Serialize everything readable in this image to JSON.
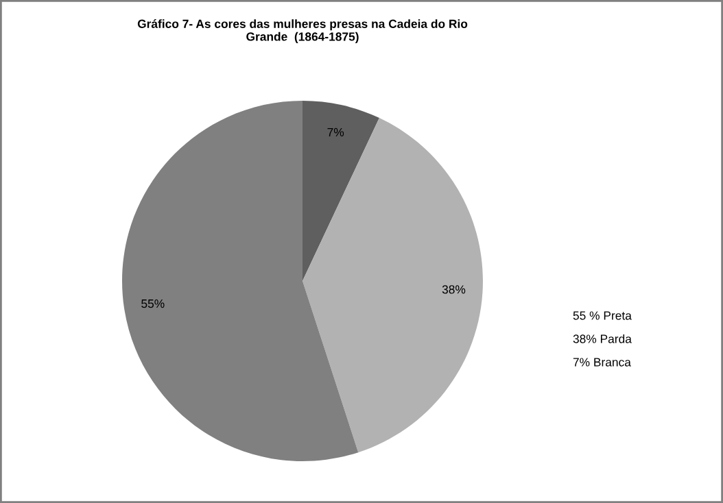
{
  "chart_data": {
    "type": "pie",
    "title": "Gráfico 7- As cores das mulheres presas na Cadeia do Rio\nGrande  (1864-1875)",
    "categories": [
      null,
      null,
      null
    ],
    "values": [
      7,
      38,
      55
    ],
    "colors": [
      "#5f5f5f",
      "#b2b2b2",
      "#808080"
    ],
    "value_labels": [
      "7%",
      "38%",
      "55%"
    ],
    "annotations": [
      "55 % Preta",
      "38% Parda",
      "7% Branca"
    ],
    "legend": false
  }
}
